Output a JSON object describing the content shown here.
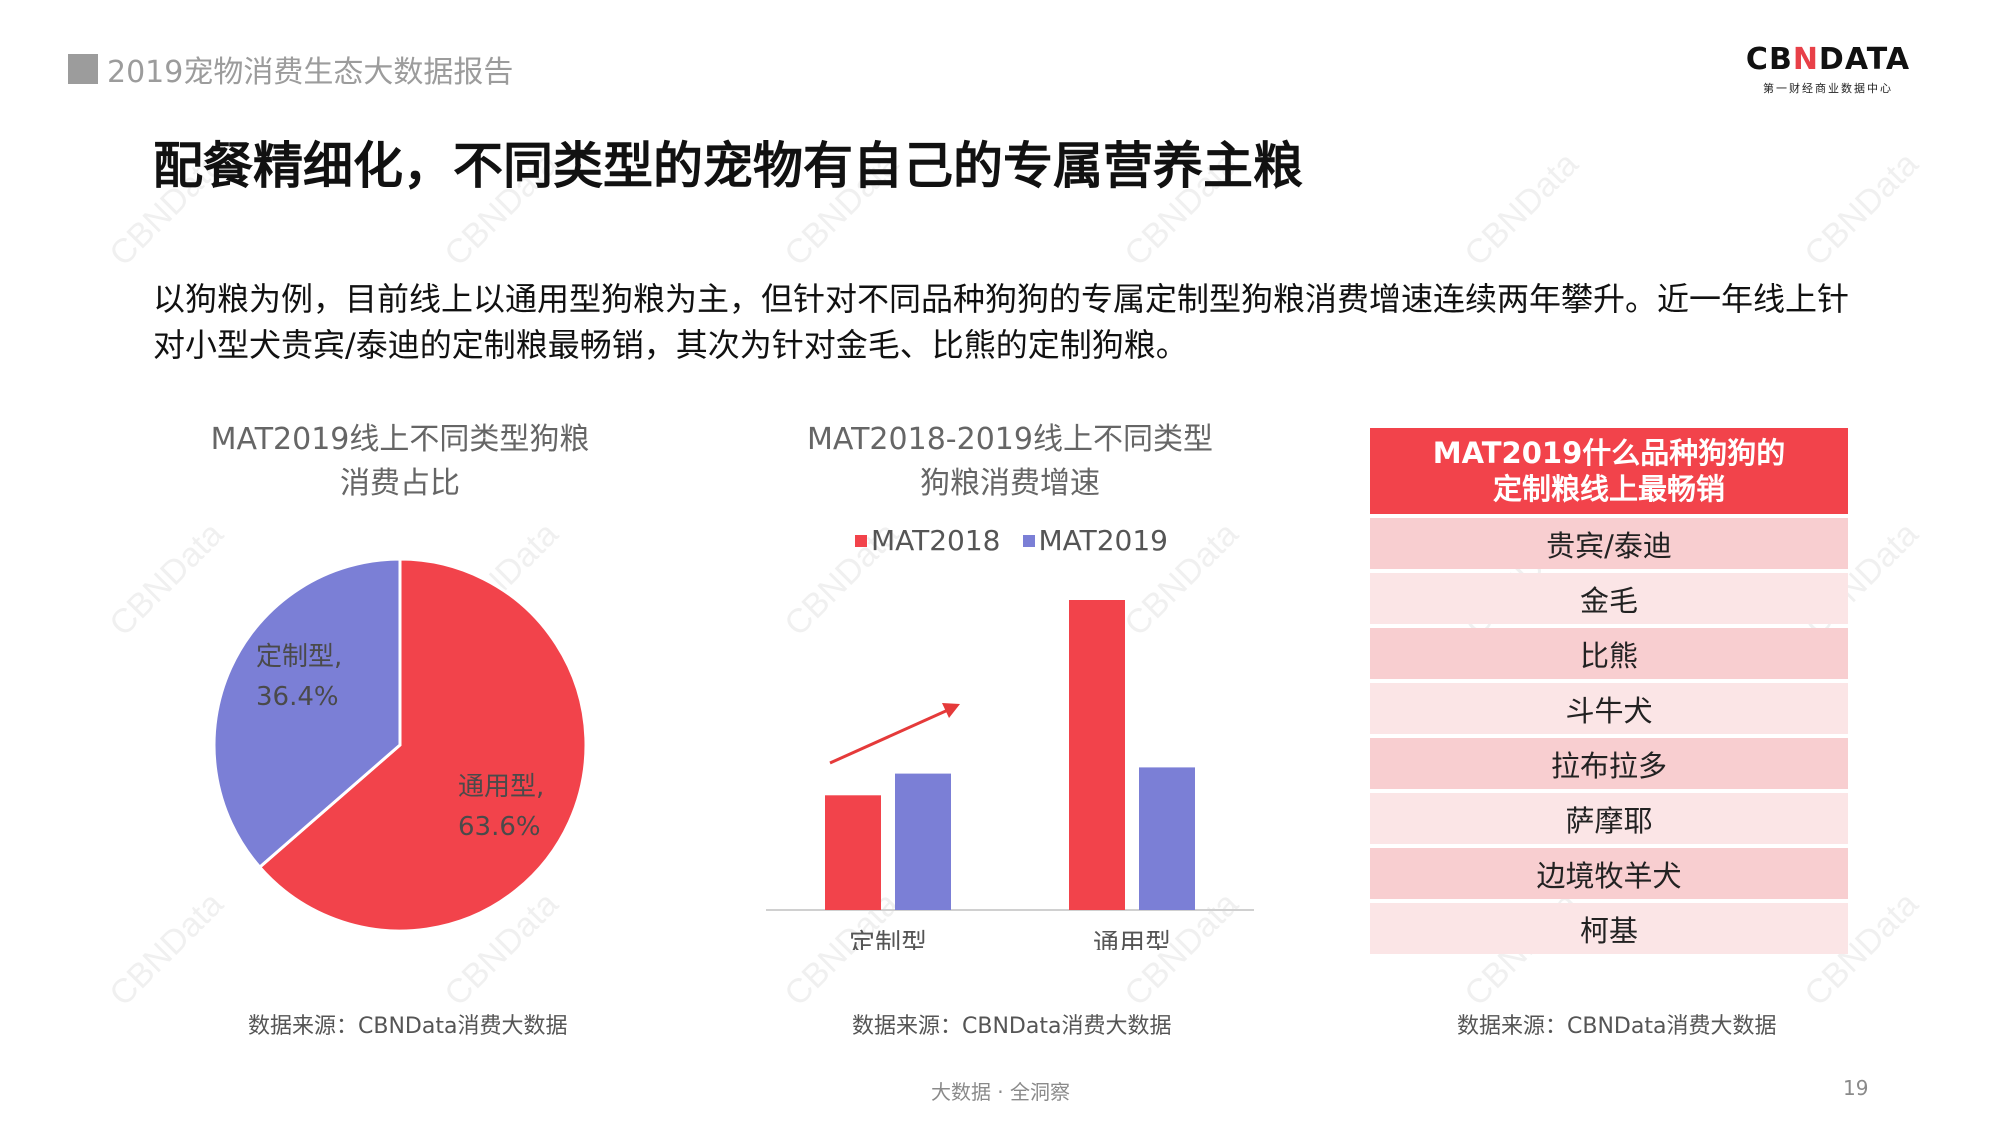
{
  "header": {
    "report_title": "2019宠物消费生态大数据报告",
    "logo_text_left": "CB",
    "logo_text_mark": "N",
    "logo_text_right": "DATA",
    "logo_subtitle": "第一财经商业数据中心"
  },
  "page_title": "配餐精细化，不同类型的宠物有自己的专属营养主粮",
  "description": "以狗粮为例，目前线上以通用型狗粮为主，但针对不同品种狗狗的专属定制型狗粮消费增速连续两年攀升。近一年线上针对小型犬贵宾/泰迪的定制粮最畅销，其次为针对金毛、比熊的定制狗粮。",
  "pie": {
    "title_line1": "MAT2019线上不同类型狗粮",
    "title_line2": "消费占比",
    "source": "数据来源：CBNData消费大数据"
  },
  "bar": {
    "title_line1": "MAT2018-2019线上不同类型",
    "title_line2": "狗粮消费增速",
    "source": "数据来源：CBNData消费大数据"
  },
  "ranking": {
    "title_line1": "MAT2019什么品种狗狗的",
    "title_line2": "定制粮线上最畅销",
    "items": [
      "贵宾/泰迪",
      "金毛",
      "比熊",
      "斗牛犬",
      "拉布拉多",
      "萨摩耶",
      "边境牧羊犬",
      "柯基"
    ],
    "source": "数据来源：CBNData消费大数据"
  },
  "footer": {
    "tagline": "大数据 · 全洞察",
    "page_number": "19"
  },
  "watermark": "CBNData",
  "colors": {
    "red": "#f2434b",
    "blue": "#7b7fd6",
    "title_red": "#f2434b"
  },
  "chart_data": [
    {
      "type": "pie",
      "title": "MAT2019线上不同类型狗粮消费占比",
      "slices": [
        {
          "name": "通用型",
          "value": 63.6,
          "label_name": "通用型,",
          "label_value": "63.6%",
          "color": "#f2434b"
        },
        {
          "name": "定制型",
          "value": 36.4,
          "label_name": "定制型,",
          "label_value": "36.4%",
          "color": "#7b7fd6"
        }
      ]
    },
    {
      "type": "bar",
      "title": "MAT2018-2019线上不同类型狗粮消费增速",
      "categories": [
        "定制型",
        "通用型"
      ],
      "series": [
        {
          "name": "MAT2018",
          "values": [
            0.37,
            1.0
          ],
          "color": "#f2434b"
        },
        {
          "name": "MAT2019",
          "values": [
            0.44,
            0.46
          ],
          "color": "#7b7fd6"
        }
      ],
      "y_axis_shown": false,
      "grid": false,
      "legend": "top",
      "annotation": "upward trend arrow over 定制型"
    }
  ]
}
